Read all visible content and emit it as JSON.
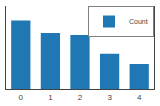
{
  "chart_data": {
    "type": "bar",
    "categories": [
      "0",
      "1",
      "2",
      "3",
      "4"
    ],
    "series": [
      {
        "name": "Count",
        "color": "#1f77b4",
        "values": [
          88,
          82,
          81,
          72,
          67
        ]
      }
    ],
    "ylim": [
      55,
      95
    ],
    "grid": false,
    "legend": "upper right",
    "tick_labels": "x"
  }
}
